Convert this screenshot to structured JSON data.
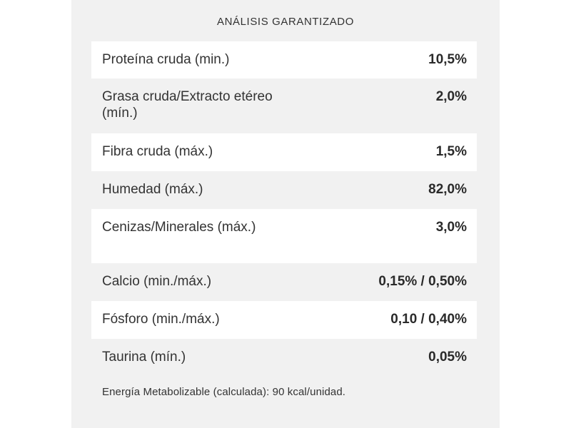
{
  "table": {
    "title": "ANÁLISIS GARANTIZADO",
    "rows": [
      {
        "label": "Proteína cruda (min.)",
        "value": "10,5%"
      },
      {
        "label": "Grasa cruda/Extracto etéreo (mín.)",
        "value": "2,0%"
      },
      {
        "label": "Fibra cruda (máx.)",
        "value": "1,5%"
      },
      {
        "label": "Humedad (máx.)",
        "value": "82,0%"
      },
      {
        "label": "Cenizas/Minerales (máx.)",
        "value": "3,0%"
      },
      {
        "label": "Calcio (min./máx.)",
        "value": "0,15% / 0,50%"
      },
      {
        "label": "Fósforo (min./máx.)",
        "value": "0,10 / 0,40%"
      },
      {
        "label": "Taurina (mín.)",
        "value": "0,05%"
      }
    ],
    "footnote": "Energía Metabolizable (calculada): 90 kcal/unidad."
  },
  "colors": {
    "panel_background": "#f1f1f1",
    "row_highlight": "#ffffff",
    "text": "#333333"
  }
}
